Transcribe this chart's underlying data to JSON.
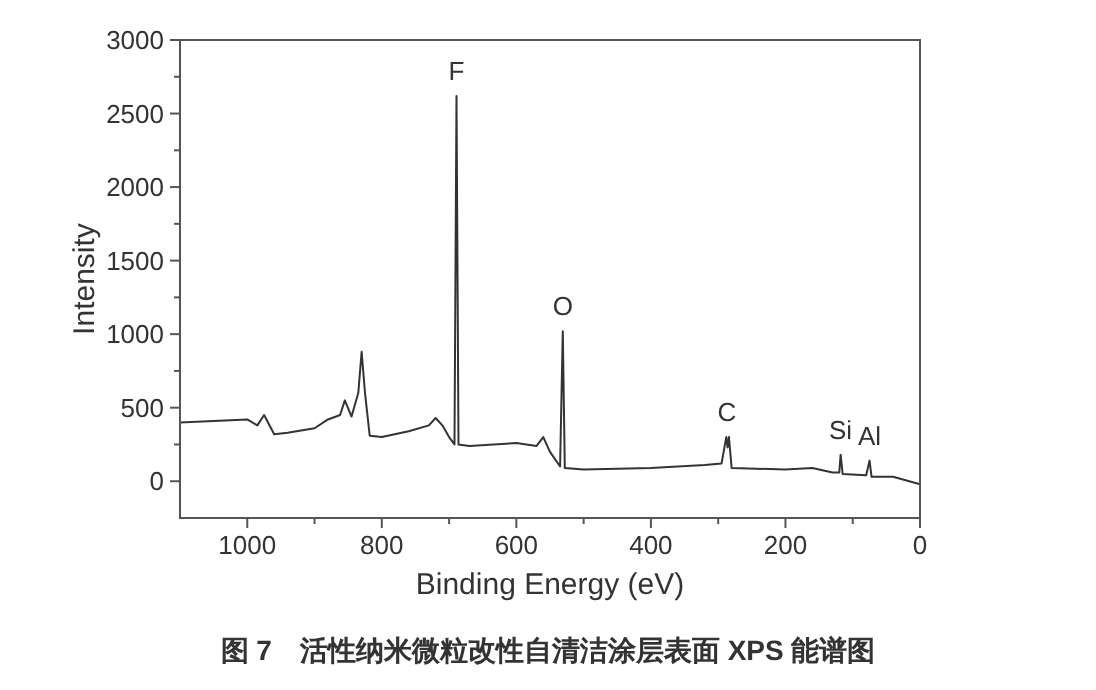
{
  "chart_data": {
    "type": "line",
    "xlabel": "Binding Energy (eV)",
    "ylabel": "Intensity",
    "xlim": [
      1100,
      0
    ],
    "xticks": [
      1000,
      800,
      600,
      400,
      200,
      0
    ],
    "ylim": [
      -250,
      3000
    ],
    "yticks": [
      0,
      500,
      1000,
      1500,
      2000,
      2500,
      3000
    ],
    "grid": false,
    "marker": "none",
    "line_style": "solid",
    "series": [
      {
        "color": "#333333",
        "x": [
          1100,
          1050,
          1000,
          985,
          975,
          960,
          940,
          900,
          880,
          862,
          855,
          845,
          835,
          830,
          825,
          818,
          800,
          760,
          730,
          720,
          710,
          700,
          692,
          689,
          686,
          670,
          600,
          570,
          560,
          550,
          535,
          531,
          528,
          500,
          400,
          320,
          295,
          288,
          286,
          284,
          280,
          200,
          160,
          130,
          120,
          118,
          115,
          80,
          75,
          72,
          40,
          0
        ],
        "values": [
          400,
          410,
          420,
          380,
          450,
          320,
          330,
          360,
          420,
          450,
          550,
          440,
          600,
          880,
          600,
          310,
          300,
          340,
          380,
          430,
          380,
          300,
          250,
          2620,
          250,
          240,
          260,
          240,
          300,
          200,
          100,
          1020,
          90,
          80,
          90,
          110,
          120,
          300,
          230,
          300,
          90,
          80,
          90,
          60,
          60,
          180,
          50,
          40,
          140,
          30,
          30,
          -20
        ]
      }
    ],
    "annotations": [
      {
        "text": "F",
        "x": 689,
        "y": 2620
      },
      {
        "text": "O",
        "x": 531,
        "y": 1020
      },
      {
        "text": "C",
        "x": 287,
        "y": 300
      },
      {
        "text": "Si",
        "x": 118,
        "y": 180
      },
      {
        "text": "Al",
        "x": 75,
        "y": 140
      },
      "图 7　活性纳米微粒改性自清洁涂层表面 XPS 能谱图"
    ]
  }
}
